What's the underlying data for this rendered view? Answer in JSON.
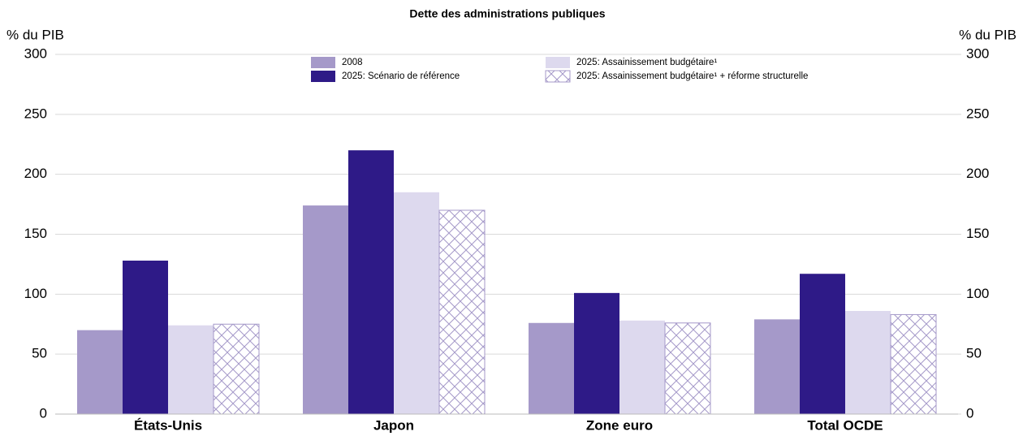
{
  "chart_data": {
    "type": "bar",
    "title": "Dette des administrations publiques",
    "y_label": "% du PIB",
    "y2_label": "% du PIB",
    "categories": [
      "États-Unis",
      "Japon",
      "Zone euro",
      "Total OCDE"
    ],
    "series": [
      {
        "name": "2008",
        "color": "#a599c9",
        "values": [
          70,
          174,
          76,
          79
        ]
      },
      {
        "name": "2025: Scénario de référence",
        "color": "#2e1a87",
        "values": [
          128,
          220,
          101,
          117
        ]
      },
      {
        "name": "2025: Assainissement budgétaire¹",
        "color": "#ddd9ee",
        "values": [
          74,
          185,
          78,
          86
        ]
      },
      {
        "name": "2025: Assainissement budgétaire¹ + réforme structurelle",
        "color": "#a599c9",
        "hatch": "cross",
        "values": [
          75,
          170,
          76,
          83
        ]
      }
    ],
    "ylim": [
      0,
      300
    ],
    "yticks": [
      0,
      50,
      100,
      150,
      200,
      250,
      300
    ],
    "y2lim": [
      0,
      300
    ],
    "y2ticks": [
      0,
      50,
      100,
      150,
      200,
      250,
      300
    ],
    "grid": true,
    "legend": "top"
  }
}
